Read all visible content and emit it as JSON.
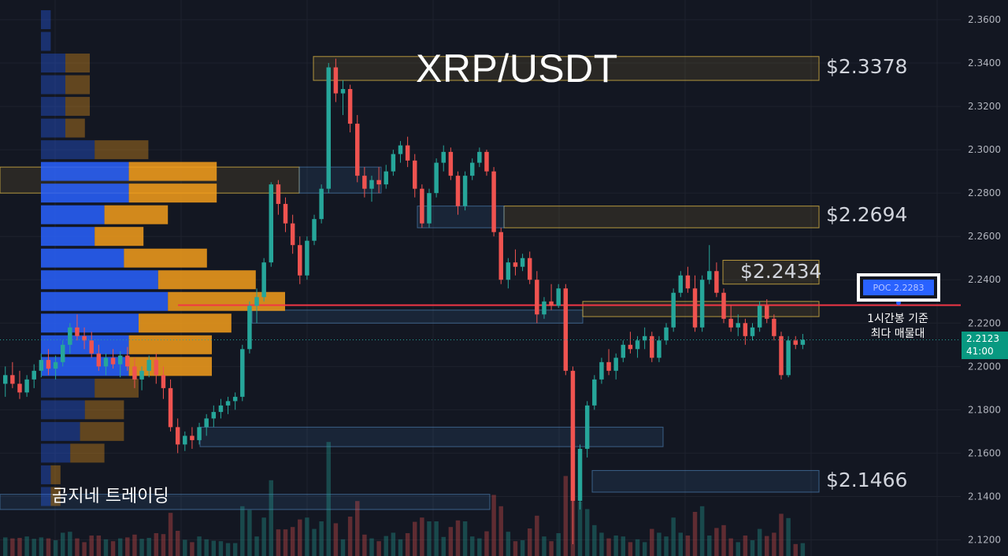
{
  "chart_data": {
    "type": "candlestick",
    "title": "XRP/USDT",
    "y_ticks": [
      "2.3600",
      "2.3400",
      "2.3200",
      "2.3000",
      "2.2800",
      "2.2600",
      "2.2400",
      "2.2200",
      "2.2000",
      "2.1800",
      "2.1600",
      "2.1400",
      "2.1200"
    ],
    "ylim": [
      2.115,
      2.365
    ],
    "levels": [
      {
        "label": "$2.3378",
        "value": 2.3378,
        "color": "#f7c35a"
      },
      {
        "label": "$2.2694",
        "value": 2.2694,
        "color": "#f7c35a"
      },
      {
        "label": "$2.2434",
        "value": 2.2434,
        "color": "#f7c35a"
      },
      {
        "label": "$2.1466",
        "value": 2.1466,
        "color": "#5b9cf6"
      }
    ],
    "poc": {
      "label": "POC  2.2283",
      "value": 2.2283,
      "note_line1": "1시간봉 기준",
      "note_line2": "최다 매물대"
    },
    "last_price": {
      "value": "2.2123",
      "countdown": "41:00"
    },
    "watermark": "곰지네 트레이딩",
    "colors": {
      "up": "#26a69a",
      "down": "#ef5350",
      "poc_line": "#f23645",
      "profile_blue": "#2962ff",
      "profile_orange": "#f59d1b"
    },
    "candles_ohlc": [
      [
        2.192,
        2.2,
        2.186,
        2.196
      ],
      [
        2.196,
        2.202,
        2.19,
        2.192
      ],
      [
        2.192,
        2.198,
        2.185,
        2.188
      ],
      [
        2.188,
        2.196,
        2.186,
        2.194
      ],
      [
        2.194,
        2.201,
        2.19,
        2.198
      ],
      [
        2.198,
        2.206,
        2.195,
        2.203
      ],
      [
        2.203,
        2.208,
        2.196,
        2.199
      ],
      [
        2.199,
        2.205,
        2.194,
        2.202
      ],
      [
        2.202,
        2.212,
        2.2,
        2.21
      ],
      [
        2.21,
        2.22,
        2.206,
        2.218
      ],
      [
        2.218,
        2.224,
        2.212,
        2.214
      ],
      [
        2.214,
        2.218,
        2.208,
        2.212
      ],
      [
        2.212,
        2.216,
        2.204,
        2.206
      ],
      [
        2.206,
        2.21,
        2.198,
        2.2
      ],
      [
        2.2,
        2.206,
        2.196,
        2.204
      ],
      [
        2.204,
        2.208,
        2.199,
        2.201
      ],
      [
        2.201,
        2.207,
        2.195,
        2.205
      ],
      [
        2.205,
        2.209,
        2.198,
        2.2
      ],
      [
        2.2,
        2.204,
        2.19,
        2.194
      ],
      [
        2.194,
        2.2,
        2.189,
        2.198
      ],
      [
        2.198,
        2.205,
        2.195,
        2.203
      ],
      [
        2.203,
        2.206,
        2.192,
        2.196
      ],
      [
        2.196,
        2.2,
        2.185,
        2.19
      ],
      [
        2.19,
        2.194,
        2.17,
        2.172
      ],
      [
        2.172,
        2.176,
        2.16,
        2.164
      ],
      [
        2.164,
        2.17,
        2.161,
        2.168
      ],
      [
        2.168,
        2.172,
        2.162,
        2.166
      ],
      [
        2.166,
        2.174,
        2.164,
        2.172
      ],
      [
        2.172,
        2.178,
        2.168,
        2.176
      ],
      [
        2.176,
        2.182,
        2.172,
        2.179
      ],
      [
        2.179,
        2.185,
        2.176,
        2.182
      ],
      [
        2.182,
        2.186,
        2.178,
        2.184
      ],
      [
        2.184,
        2.188,
        2.18,
        2.186
      ],
      [
        2.186,
        2.21,
        2.184,
        2.208
      ],
      [
        2.208,
        2.23,
        2.206,
        2.228
      ],
      [
        2.228,
        2.236,
        2.22,
        2.232
      ],
      [
        2.232,
        2.25,
        2.23,
        2.248
      ],
      [
        2.248,
        2.285,
        2.246,
        2.284
      ],
      [
        2.284,
        2.286,
        2.27,
        2.275
      ],
      [
        2.275,
        2.278,
        2.262,
        2.266
      ],
      [
        2.266,
        2.27,
        2.252,
        2.256
      ],
      [
        2.256,
        2.26,
        2.238,
        2.242
      ],
      [
        2.242,
        2.26,
        2.24,
        2.258
      ],
      [
        2.258,
        2.27,
        2.256,
        2.268
      ],
      [
        2.268,
        2.284,
        2.266,
        2.282
      ],
      [
        2.282,
        2.34,
        2.28,
        2.338
      ],
      [
        2.338,
        2.342,
        2.322,
        2.326
      ],
      [
        2.326,
        2.332,
        2.316,
        2.328
      ],
      [
        2.328,
        2.33,
        2.308,
        2.312
      ],
      [
        2.312,
        2.316,
        2.285,
        2.288
      ],
      [
        2.288,
        2.292,
        2.278,
        2.282
      ],
      [
        2.282,
        2.288,
        2.276,
        2.286
      ],
      [
        2.286,
        2.292,
        2.28,
        2.284
      ],
      [
        2.284,
        2.293,
        2.282,
        2.29
      ],
      [
        2.29,
        2.3,
        2.288,
        2.298
      ],
      [
        2.298,
        2.304,
        2.294,
        2.302
      ],
      [
        2.302,
        2.306,
        2.292,
        2.295
      ],
      [
        2.295,
        2.298,
        2.278,
        2.282
      ],
      [
        2.282,
        2.284,
        2.264,
        2.266
      ],
      [
        2.266,
        2.282,
        2.264,
        2.28
      ],
      [
        2.28,
        2.296,
        2.278,
        2.294
      ],
      [
        2.294,
        2.302,
        2.29,
        2.299
      ],
      [
        2.299,
        2.301,
        2.286,
        2.288
      ],
      [
        2.288,
        2.29,
        2.27,
        2.274
      ],
      [
        2.274,
        2.29,
        2.272,
        2.288
      ],
      [
        2.288,
        2.296,
        2.286,
        2.294
      ],
      [
        2.294,
        2.301,
        2.292,
        2.299
      ],
      [
        2.299,
        2.3,
        2.288,
        2.29
      ],
      [
        2.29,
        2.292,
        2.26,
        2.262
      ],
      [
        2.262,
        2.264,
        2.238,
        2.24
      ],
      [
        2.24,
        2.25,
        2.236,
        2.248
      ],
      [
        2.248,
        2.254,
        2.242,
        2.246
      ],
      [
        2.246,
        2.252,
        2.244,
        2.25
      ],
      [
        2.25,
        2.253,
        2.238,
        2.24
      ],
      [
        2.24,
        2.244,
        2.22,
        2.224
      ],
      [
        2.224,
        2.232,
        2.222,
        2.23
      ],
      [
        2.23,
        2.238,
        2.226,
        2.228
      ],
      [
        2.228,
        2.238,
        2.227,
        2.236
      ],
      [
        2.236,
        2.238,
        2.196,
        2.198
      ],
      [
        2.198,
        2.2,
        2.118,
        2.138
      ],
      [
        2.138,
        2.164,
        2.134,
        2.162
      ],
      [
        2.162,
        2.184,
        2.158,
        2.182
      ],
      [
        2.182,
        2.196,
        2.18,
        2.194
      ],
      [
        2.194,
        2.204,
        2.192,
        2.202
      ],
      [
        2.202,
        2.208,
        2.196,
        2.198
      ],
      [
        2.198,
        2.206,
        2.194,
        2.204
      ],
      [
        2.204,
        2.212,
        2.202,
        2.21
      ],
      [
        2.21,
        2.216,
        2.206,
        2.208
      ],
      [
        2.208,
        2.214,
        2.204,
        2.212
      ],
      [
        2.212,
        2.218,
        2.208,
        2.214
      ],
      [
        2.214,
        2.216,
        2.202,
        2.204
      ],
      [
        2.204,
        2.214,
        2.202,
        2.212
      ],
      [
        2.212,
        2.22,
        2.21,
        2.218
      ],
      [
        2.218,
        2.236,
        2.216,
        2.234
      ],
      [
        2.234,
        2.244,
        2.232,
        2.242
      ],
      [
        2.242,
        2.246,
        2.234,
        2.236
      ],
      [
        2.236,
        2.242,
        2.216,
        2.218
      ],
      [
        2.218,
        2.242,
        2.216,
        2.24
      ],
      [
        2.24,
        2.256,
        2.238,
        2.244
      ],
      [
        2.244,
        2.248,
        2.232,
        2.234
      ],
      [
        2.234,
        2.236,
        2.22,
        2.222
      ],
      [
        2.222,
        2.228,
        2.216,
        2.218
      ],
      [
        2.218,
        2.224,
        2.214,
        2.22
      ],
      [
        2.22,
        2.222,
        2.21,
        2.214
      ],
      [
        2.214,
        2.22,
        2.212,
        2.218
      ],
      [
        2.218,
        2.23,
        2.216,
        2.228
      ],
      [
        2.228,
        2.231,
        2.22,
        2.222
      ],
      [
        2.222,
        2.224,
        2.212,
        2.214
      ],
      [
        2.214,
        2.216,
        2.194,
        2.196
      ],
      [
        2.196,
        2.214,
        2.195,
        2.212
      ],
      [
        2.212,
        2.214,
        2.208,
        2.21
      ],
      [
        2.21,
        2.215,
        2.208,
        2.2123
      ]
    ],
    "volume_profile_rows": [
      [
        2.36,
        0.04,
        0.0
      ],
      [
        2.35,
        0.04,
        0.0
      ],
      [
        2.34,
        0.1,
        0.1
      ],
      [
        2.33,
        0.1,
        0.1
      ],
      [
        2.32,
        0.1,
        0.1
      ],
      [
        2.31,
        0.1,
        0.08
      ],
      [
        2.3,
        0.22,
        0.22
      ],
      [
        2.29,
        0.36,
        0.36
      ],
      [
        2.28,
        0.36,
        0.36
      ],
      [
        2.27,
        0.26,
        0.26
      ],
      [
        2.26,
        0.22,
        0.2
      ],
      [
        2.25,
        0.34,
        0.34
      ],
      [
        2.24,
        0.48,
        0.4
      ],
      [
        2.23,
        0.52,
        0.48
      ],
      [
        2.22,
        0.4,
        0.38
      ],
      [
        2.21,
        0.36,
        0.34
      ],
      [
        2.2,
        0.36,
        0.34
      ],
      [
        2.19,
        0.22,
        0.18
      ],
      [
        2.18,
        0.18,
        0.16
      ],
      [
        2.17,
        0.16,
        0.18
      ],
      [
        2.16,
        0.12,
        0.14
      ],
      [
        2.15,
        0.04,
        0.04
      ],
      [
        2.14,
        0.04,
        0.04
      ]
    ],
    "zones": [
      [
        2.343,
        2.332,
        "gold"
      ],
      [
        2.292,
        2.28,
        "gold"
      ],
      [
        2.292,
        2.28,
        "blue"
      ],
      [
        2.274,
        2.264,
        "gold"
      ],
      [
        2.274,
        2.264,
        "blue"
      ],
      [
        2.249,
        2.238,
        "gold"
      ],
      [
        2.226,
        2.22,
        "blue"
      ],
      [
        2.23,
        2.223,
        "gold"
      ],
      [
        2.172,
        2.163,
        "blue"
      ],
      [
        2.152,
        2.142,
        "blue"
      ],
      [
        2.141,
        2.134,
        "blue"
      ]
    ]
  }
}
